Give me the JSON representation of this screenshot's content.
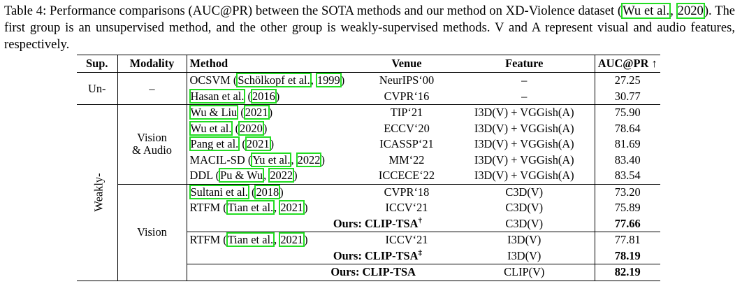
{
  "caption": {
    "part1": "Table 4:  Performance comparisons (AUC@PR) between the SOTA methods and our method on XD-Violence dataset (",
    "cite_author": "Wu et al.",
    "cite_year": "2020",
    "part2": ").  The first group is an unsupervised method, and the other group is weakly-supervised methods. V and A represent visual and audio features, respectively."
  },
  "headers": {
    "sup": "Sup.",
    "modality": "Modality",
    "method": "Method",
    "venue": "Venue",
    "feature": "Feature",
    "auc": "AUC@PR ↑"
  },
  "groups": {
    "unsup": "Un-",
    "unsup_modality": "–",
    "weak": "Weakly-",
    "va_line1": "Vision",
    "va_line2": "& Audio",
    "vision": "Vision"
  },
  "rows": [
    {
      "pre": "OCSVM (",
      "a": "Schölkopf et al.",
      "mid": ", ",
      "y": "1999",
      "post": ")",
      "venue": "NeurIPS‘00",
      "feature": "–",
      "auc": "27.25"
    },
    {
      "pre": "",
      "a": "Hasan et al.",
      "mid": " (",
      "y": "2016",
      "post": ")",
      "venue": "CVPR‘16",
      "feature": "–",
      "auc": "30.77"
    },
    {
      "pre": "",
      "a": "Wu & Liu",
      "mid": " (",
      "y": "2021",
      "post": ")",
      "venue": "TIP‘21",
      "feature": "I3D(V) + VGGish(A)",
      "auc": "75.90"
    },
    {
      "pre": "",
      "a": "Wu et al.",
      "mid": " (",
      "y": "2020",
      "post": ")",
      "venue": "ECCV‘20",
      "feature": "I3D(V) + VGGish(A)",
      "auc": "78.64"
    },
    {
      "pre": "",
      "a": "Pang et al.",
      "mid": " (",
      "y": "2021",
      "post": ")",
      "venue": "ICASSP‘21",
      "feature": "I3D(V) + VGGish(A)",
      "auc": "81.69"
    },
    {
      "pre": "MACIL-SD (",
      "a": "Yu et al.",
      "mid": ", ",
      "y": "2022",
      "post": ")",
      "venue": "MM‘22",
      "feature": "I3D(V) + VGGish(A)",
      "auc": "83.40"
    },
    {
      "pre": "DDL (",
      "a": "Pu & Wu",
      "mid": ", ",
      "y": "2022",
      "post": ")",
      "venue": "ICCECE‘22",
      "feature": "I3D(V) + VGGish(A)",
      "auc": "83.54"
    },
    {
      "pre": "",
      "a": "Sultani et al.",
      "mid": " (",
      "y": "2018",
      "post": ")",
      "venue": "CVPR‘18",
      "feature": "C3D(V)",
      "auc": "73.20"
    },
    {
      "pre": "RTFM (",
      "a": "Tian et al.",
      "mid": ", ",
      "y": "2021",
      "post": ")",
      "venue": "ICCV‘21",
      "feature": "C3D(V)",
      "auc": "75.89"
    },
    {
      "ours": "Ours: CLIP-TSA",
      "mark": "†",
      "venue": "",
      "feature": "C3D(V)",
      "auc": "77.66"
    },
    {
      "pre": "RTFM (",
      "a": "Tian et al.",
      "mid": ", ",
      "y": "2021",
      "post": ")",
      "venue": "ICCV‘21",
      "feature": "I3D(V)",
      "auc": "77.81"
    },
    {
      "ours": "Ours: CLIP-TSA",
      "mark": "‡",
      "venue": "",
      "feature": "I3D(V)",
      "auc": "78.19"
    },
    {
      "ours": "Ours: CLIP-TSA",
      "mark": "",
      "venue": "",
      "feature": "CLIP(V)",
      "auc": "82.19"
    }
  ]
}
